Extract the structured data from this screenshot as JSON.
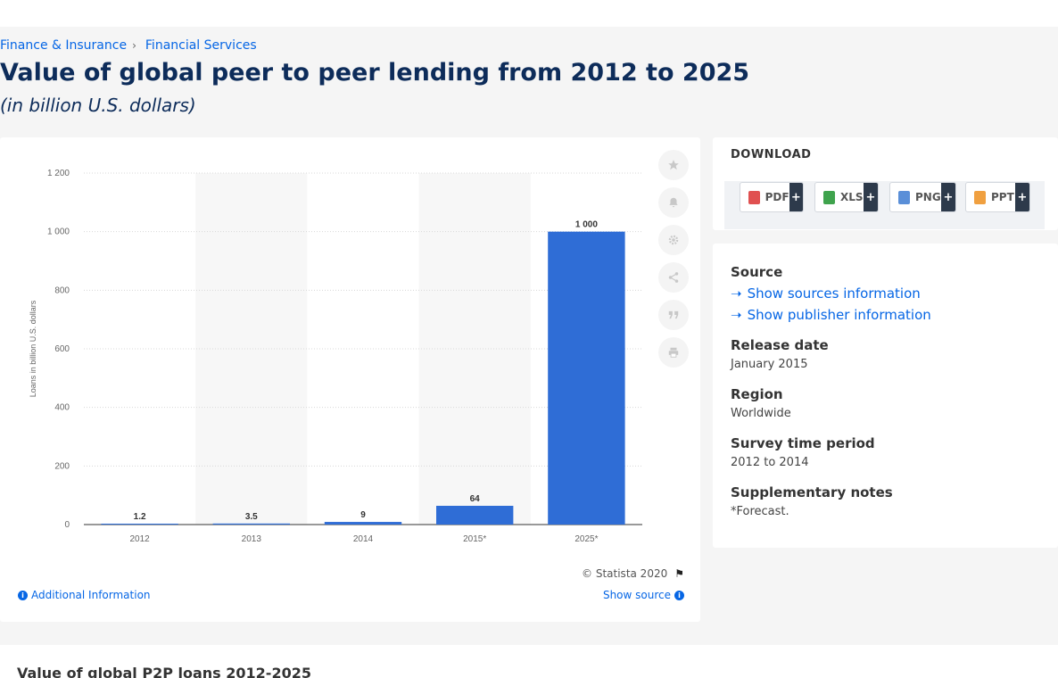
{
  "breadcrumb": {
    "item1": "Finance & Insurance",
    "sep": "›",
    "item2": "Financial Services"
  },
  "title": "Value of global peer to peer lending from 2012 to 2025",
  "subtitle": "(in billion U.S. dollars)",
  "chart_data": {
    "type": "bar",
    "categories": [
      "2012",
      "2013",
      "2014",
      "2015*",
      "2025*"
    ],
    "values": [
      1.2,
      3.5,
      9,
      64,
      1000
    ],
    "value_labels": [
      "1.2",
      "3.5",
      "9",
      "64",
      "1 000"
    ],
    "ylabel": "Loans in billion U.S. dollars",
    "xlabel": "",
    "ylim": [
      0,
      1200
    ],
    "yticks": [
      0,
      200,
      400,
      600,
      800,
      1000,
      1200
    ],
    "ytick_labels": [
      "0",
      "200",
      "400",
      "600",
      "800",
      "1 000",
      "1 200"
    ],
    "bar_color": "#2f6dd6",
    "band_color": "#f7f7f7",
    "grid": true,
    "legend": "none"
  },
  "toolbar": {
    "favorite_icon": "star-icon",
    "notify_icon": "bell-icon",
    "settings_icon": "gear-icon",
    "share_icon": "share-icon",
    "cite_icon": "quote-icon",
    "print_icon": "printer-icon"
  },
  "copyright": "© Statista 2020",
  "additional_info": "Additional Information",
  "show_source": "Show source",
  "download": {
    "title": "DOWNLOAD",
    "pdf": "PDF",
    "xls": "XLS",
    "png": "PNG",
    "ppt": "PPT",
    "plus": "+"
  },
  "meta": {
    "source_h": "Source",
    "show_sources": "Show sources information",
    "show_publisher": "Show publisher information",
    "release_h": "Release date",
    "release_v": "January 2015",
    "region_h": "Region",
    "region_v": "Worldwide",
    "survey_h": "Survey time period",
    "survey_v": "2012 to 2014",
    "notes_h": "Supplementary notes",
    "notes_v": "*Forecast."
  },
  "bottom_title": "Value of global P2P loans 2012-2025",
  "colors": {
    "accent": "#0666e5",
    "title": "#0d2c5a"
  }
}
